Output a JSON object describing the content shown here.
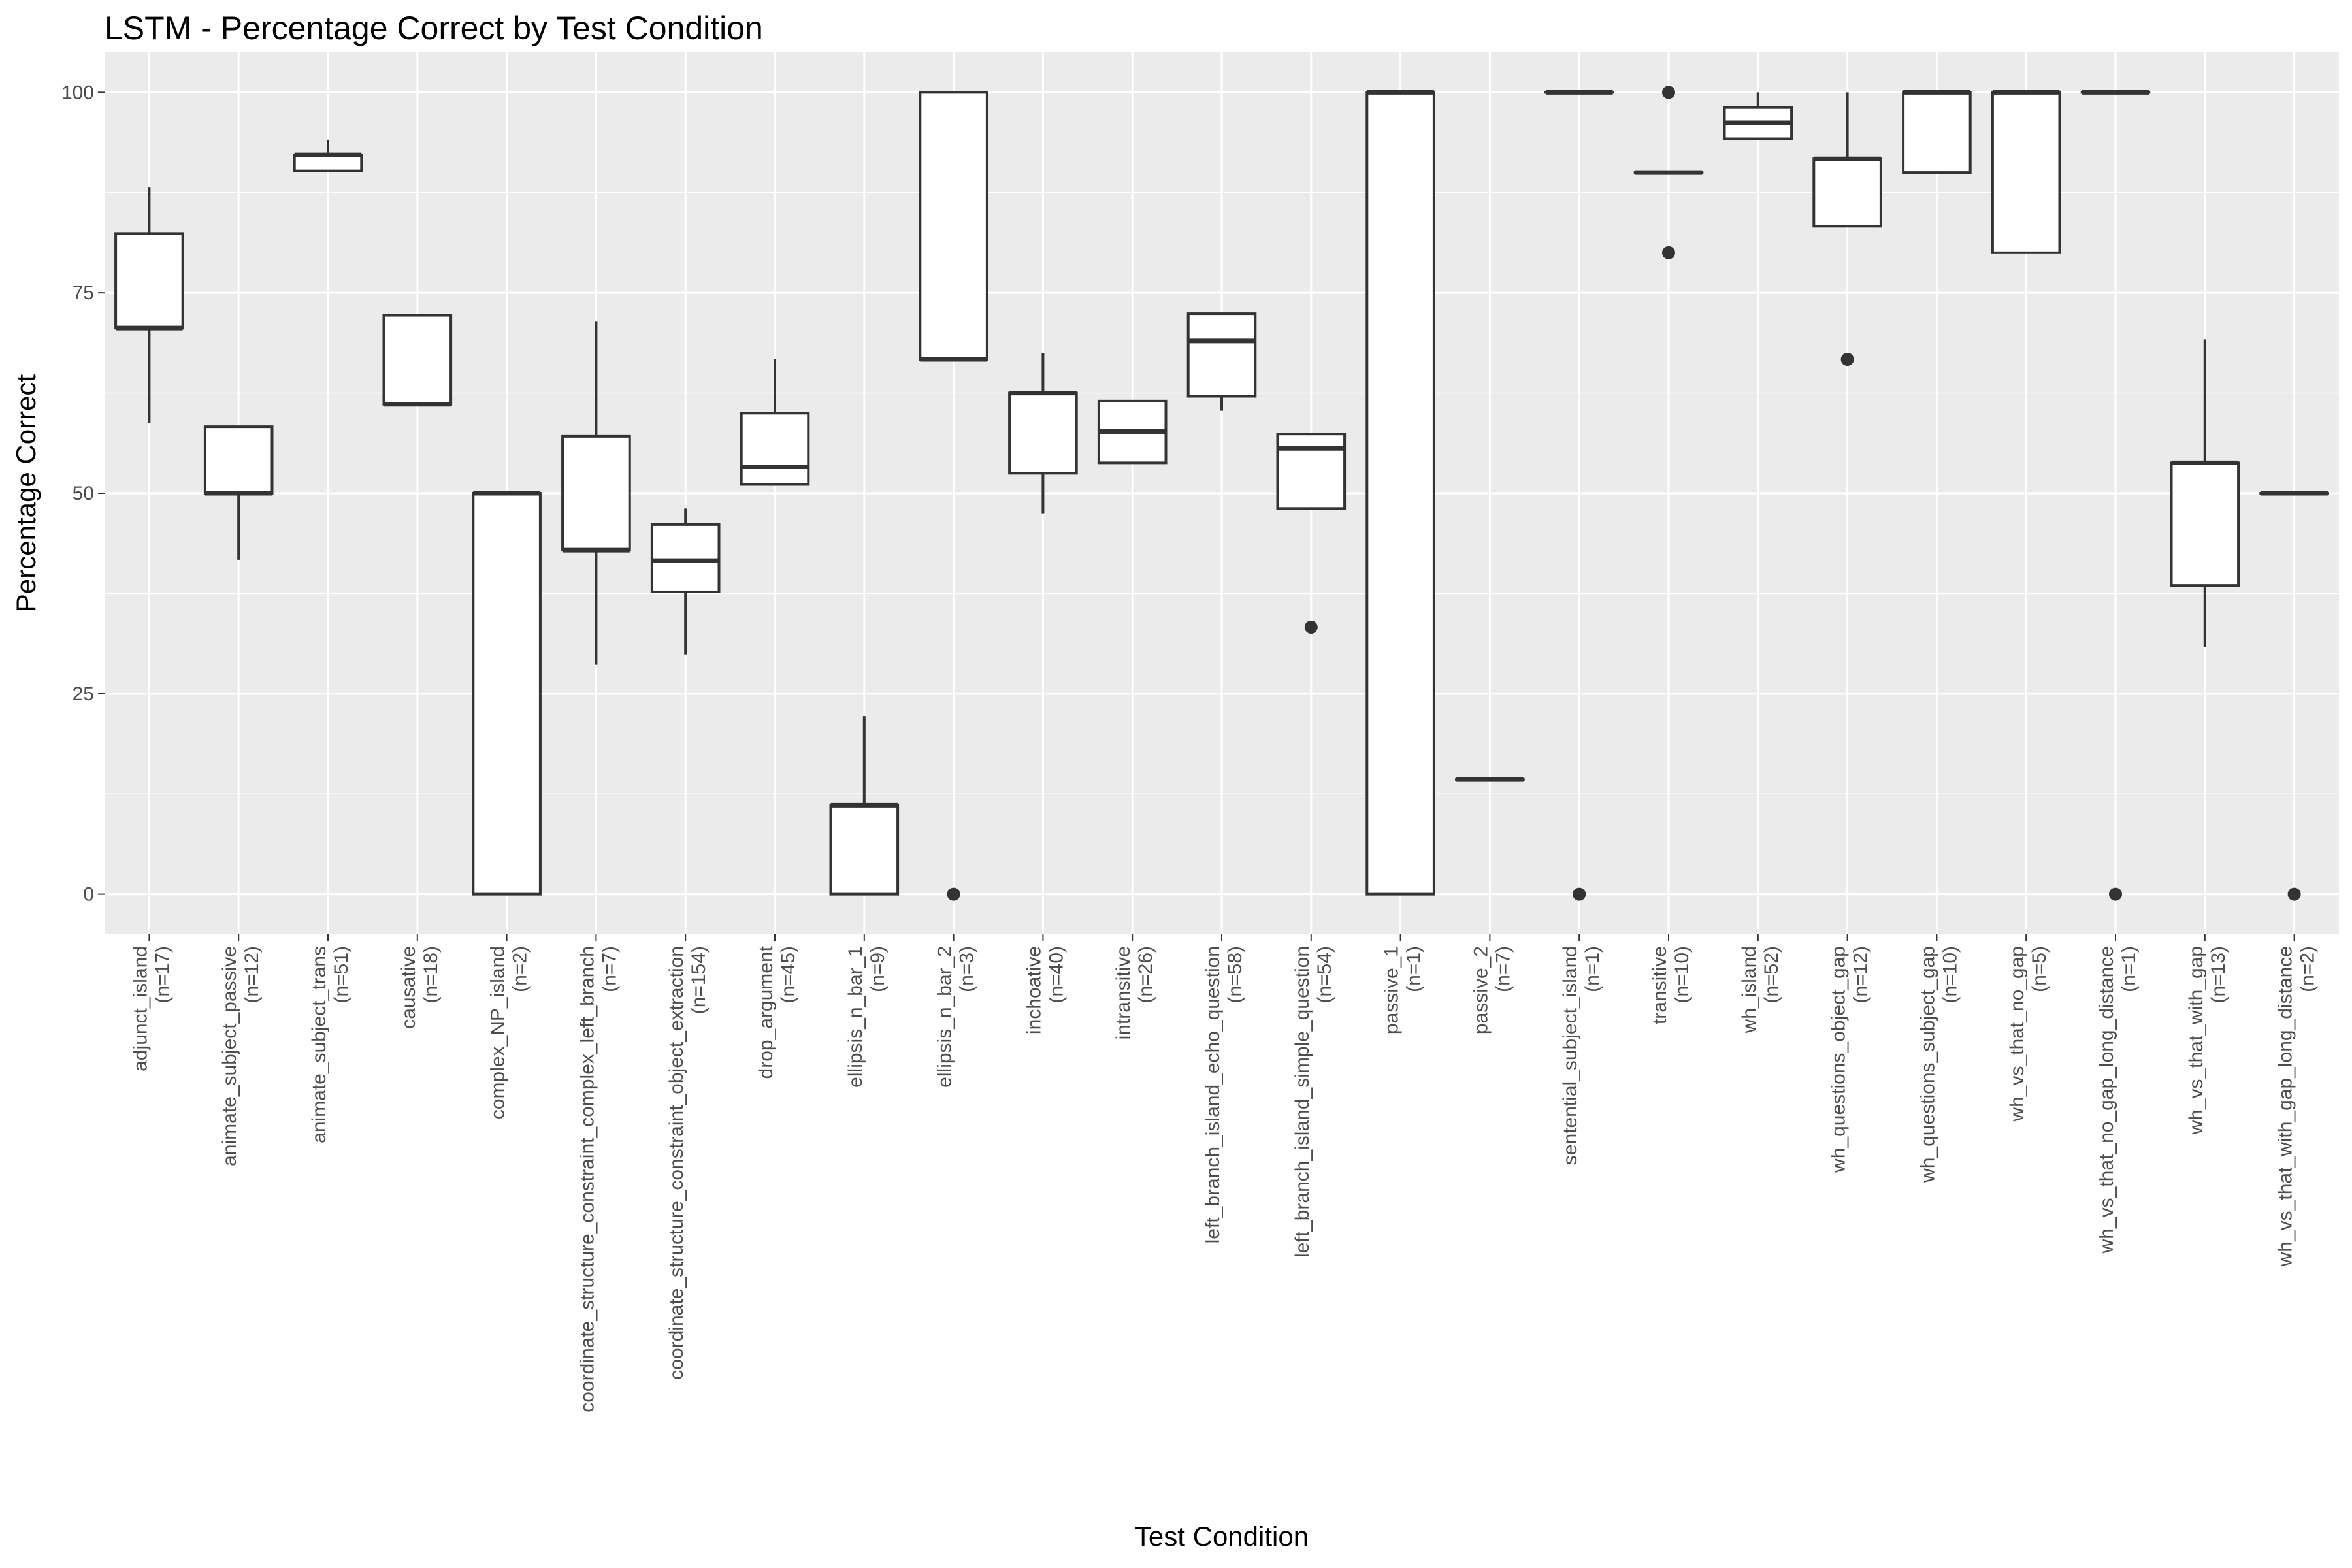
{
  "chart_data": {
    "type": "boxplot",
    "title": "LSTM - Percentage Correct by Test Condition",
    "xlabel": "Test Condition",
    "ylabel": "Percentage Correct",
    "ylim": [
      -5,
      105
    ],
    "yticks": [
      0,
      25,
      50,
      75,
      100
    ],
    "grid": true,
    "legend": "none",
    "colors": {
      "panel": "#ebebeb",
      "grid": "#ffffff",
      "box_fill": "#ffffff",
      "box_line": "#333333",
      "text": "#4d4d4d"
    },
    "categories": [
      {
        "name": "adjunct_island",
        "n": "(n=17)",
        "q1": 70.6,
        "median": 70.6,
        "q3": 82.4,
        "lower": 58.8,
        "upper": 88.2,
        "outliers": []
      },
      {
        "name": "animate_subject_passive",
        "n": "(n=12)",
        "q1": 50.0,
        "median": 50.0,
        "q3": 58.3,
        "lower": 41.7,
        "upper": 58.3,
        "outliers": []
      },
      {
        "name": "animate_subject_trans",
        "n": "(n=51)",
        "q1": 90.2,
        "median": 92.2,
        "q3": 92.2,
        "lower": 90.2,
        "upper": 94.1,
        "outliers": []
      },
      {
        "name": "causative",
        "n": "(n=18)",
        "q1": 61.1,
        "median": 61.1,
        "q3": 72.2,
        "lower": 61.1,
        "upper": 72.2,
        "outliers": []
      },
      {
        "name": "complex_NP_island",
        "n": "(n=2)",
        "q1": 0,
        "median": 50.0,
        "q3": 50.0,
        "lower": 0,
        "upper": 50.0,
        "outliers": []
      },
      {
        "name": "coordinate_structure_constraint_complex_left_branch",
        "n": "(n=7)",
        "q1": 42.9,
        "median": 42.9,
        "q3": 57.1,
        "lower": 28.6,
        "upper": 71.4,
        "outliers": []
      },
      {
        "name": "coordinate_structure_constraint_object_extraction",
        "n": "(n=154)",
        "q1": 37.7,
        "median": 41.6,
        "q3": 46.1,
        "lower": 29.9,
        "upper": 48.1,
        "outliers": []
      },
      {
        "name": "drop_argument",
        "n": "(n=45)",
        "q1": 51.1,
        "median": 53.3,
        "q3": 60.0,
        "lower": 51.1,
        "upper": 66.7,
        "outliers": []
      },
      {
        "name": "ellipsis_n_bar_1",
        "n": "(n=9)",
        "q1": 0,
        "median": 11.1,
        "q3": 11.1,
        "lower": 0,
        "upper": 22.2,
        "outliers": []
      },
      {
        "name": "ellipsis_n_bar_2",
        "n": "(n=3)",
        "q1": 66.7,
        "median": 66.7,
        "q3": 100,
        "lower": 66.7,
        "upper": 100,
        "outliers": [
          0
        ]
      },
      {
        "name": "inchoative",
        "n": "(n=40)",
        "q1": 52.5,
        "median": 62.5,
        "q3": 62.5,
        "lower": 47.5,
        "upper": 67.5,
        "outliers": []
      },
      {
        "name": "intransitive",
        "n": "(n=26)",
        "q1": 53.8,
        "median": 57.7,
        "q3": 61.5,
        "lower": 53.8,
        "upper": 61.5,
        "outliers": []
      },
      {
        "name": "left_branch_island_echo_question",
        "n": "(n=58)",
        "q1": 62.1,
        "median": 69.0,
        "q3": 72.4,
        "lower": 60.3,
        "upper": 72.4,
        "outliers": []
      },
      {
        "name": "left_branch_island_simple_question",
        "n": "(n=54)",
        "q1": 48.1,
        "median": 55.6,
        "q3": 57.4,
        "lower": 48.1,
        "upper": 57.4,
        "outliers": [
          33.3
        ]
      },
      {
        "name": "passive_1",
        "n": "(n=1)",
        "q1": 0,
        "median": 100,
        "q3": 100,
        "lower": 0,
        "upper": 100,
        "outliers": []
      },
      {
        "name": "passive_2",
        "n": "(n=7)",
        "q1": 14.3,
        "median": 14.3,
        "q3": 14.3,
        "lower": 14.3,
        "upper": 14.3,
        "outliers": []
      },
      {
        "name": "sentential_subject_island",
        "n": "(n=1)",
        "q1": 100,
        "median": 100,
        "q3": 100,
        "lower": 100,
        "upper": 100,
        "outliers": [
          0
        ]
      },
      {
        "name": "transitive",
        "n": "(n=10)",
        "q1": 90,
        "median": 90,
        "q3": 90,
        "lower": 90,
        "upper": 90,
        "outliers": [
          100,
          80
        ]
      },
      {
        "name": "wh_island",
        "n": "(n=52)",
        "q1": 94.2,
        "median": 96.2,
        "q3": 98.1,
        "lower": 94.2,
        "upper": 100,
        "outliers": []
      },
      {
        "name": "wh_questions_object_gap",
        "n": "(n=12)",
        "q1": 83.3,
        "median": 91.7,
        "q3": 91.7,
        "lower": 83.3,
        "upper": 100,
        "outliers": [
          66.7
        ]
      },
      {
        "name": "wh_questions_subject_gap",
        "n": "(n=10)",
        "q1": 90,
        "median": 100,
        "q3": 100,
        "lower": 90,
        "upper": 100,
        "outliers": []
      },
      {
        "name": "wh_vs_that_no_gap",
        "n": "(n=5)",
        "q1": 80,
        "median": 100,
        "q3": 100,
        "lower": 80,
        "upper": 100,
        "outliers": []
      },
      {
        "name": "wh_vs_that_no_gap_long_distance",
        "n": "(n=1)",
        "q1": 100,
        "median": 100,
        "q3": 100,
        "lower": 100,
        "upper": 100,
        "outliers": [
          0
        ]
      },
      {
        "name": "wh_vs_that_with_gap",
        "n": "(n=13)",
        "q1": 38.5,
        "median": 53.8,
        "q3": 53.8,
        "lower": 30.8,
        "upper": 69.2,
        "outliers": []
      },
      {
        "name": "wh_vs_that_with_gap_long_distance",
        "n": "(n=2)",
        "q1": 50,
        "median": 50,
        "q3": 50,
        "lower": 50,
        "upper": 50,
        "outliers": [
          0
        ]
      }
    ]
  }
}
